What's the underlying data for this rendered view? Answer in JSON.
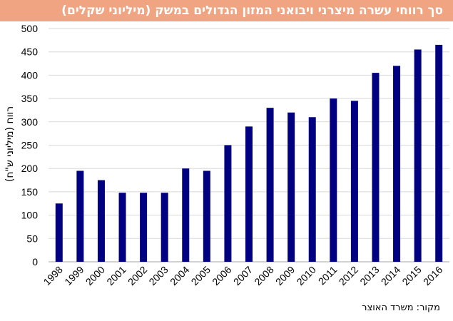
{
  "header": {
    "title": "סך רווחי  עשרה מיצרני ויבואני המזון הגדולים במשק (מיליוני שקלים)"
  },
  "footer": {
    "source": "מקור: משרד האוצר"
  },
  "colors": {
    "bar": "#000080",
    "title_bg": "#f0a482",
    "grid": "#d9d9d9"
  },
  "chart_data": {
    "type": "bar",
    "title": "סך רווחי  עשרה מיצרני ויבואני המזון הגדולים במשק (מיליוני שקלים)",
    "xlabel": "",
    "ylabel": "רווח (מיליוני ש\"ח)",
    "categories": [
      "1998",
      "1999",
      "2000",
      "2001",
      "2002",
      "2003",
      "2004",
      "2005",
      "2006",
      "2007",
      "2008",
      "2009",
      "2010",
      "2011",
      "2012",
      "2013",
      "2014",
      "2015",
      "2016"
    ],
    "values": [
      125,
      195,
      175,
      148,
      148,
      148,
      200,
      195,
      250,
      290,
      330,
      320,
      310,
      350,
      345,
      405,
      420,
      455,
      465
    ],
    "ylim": [
      0,
      500
    ],
    "yticks": [
      0,
      50,
      100,
      150,
      200,
      250,
      300,
      350,
      400,
      450,
      500
    ],
    "grid": true,
    "legend": "none"
  }
}
